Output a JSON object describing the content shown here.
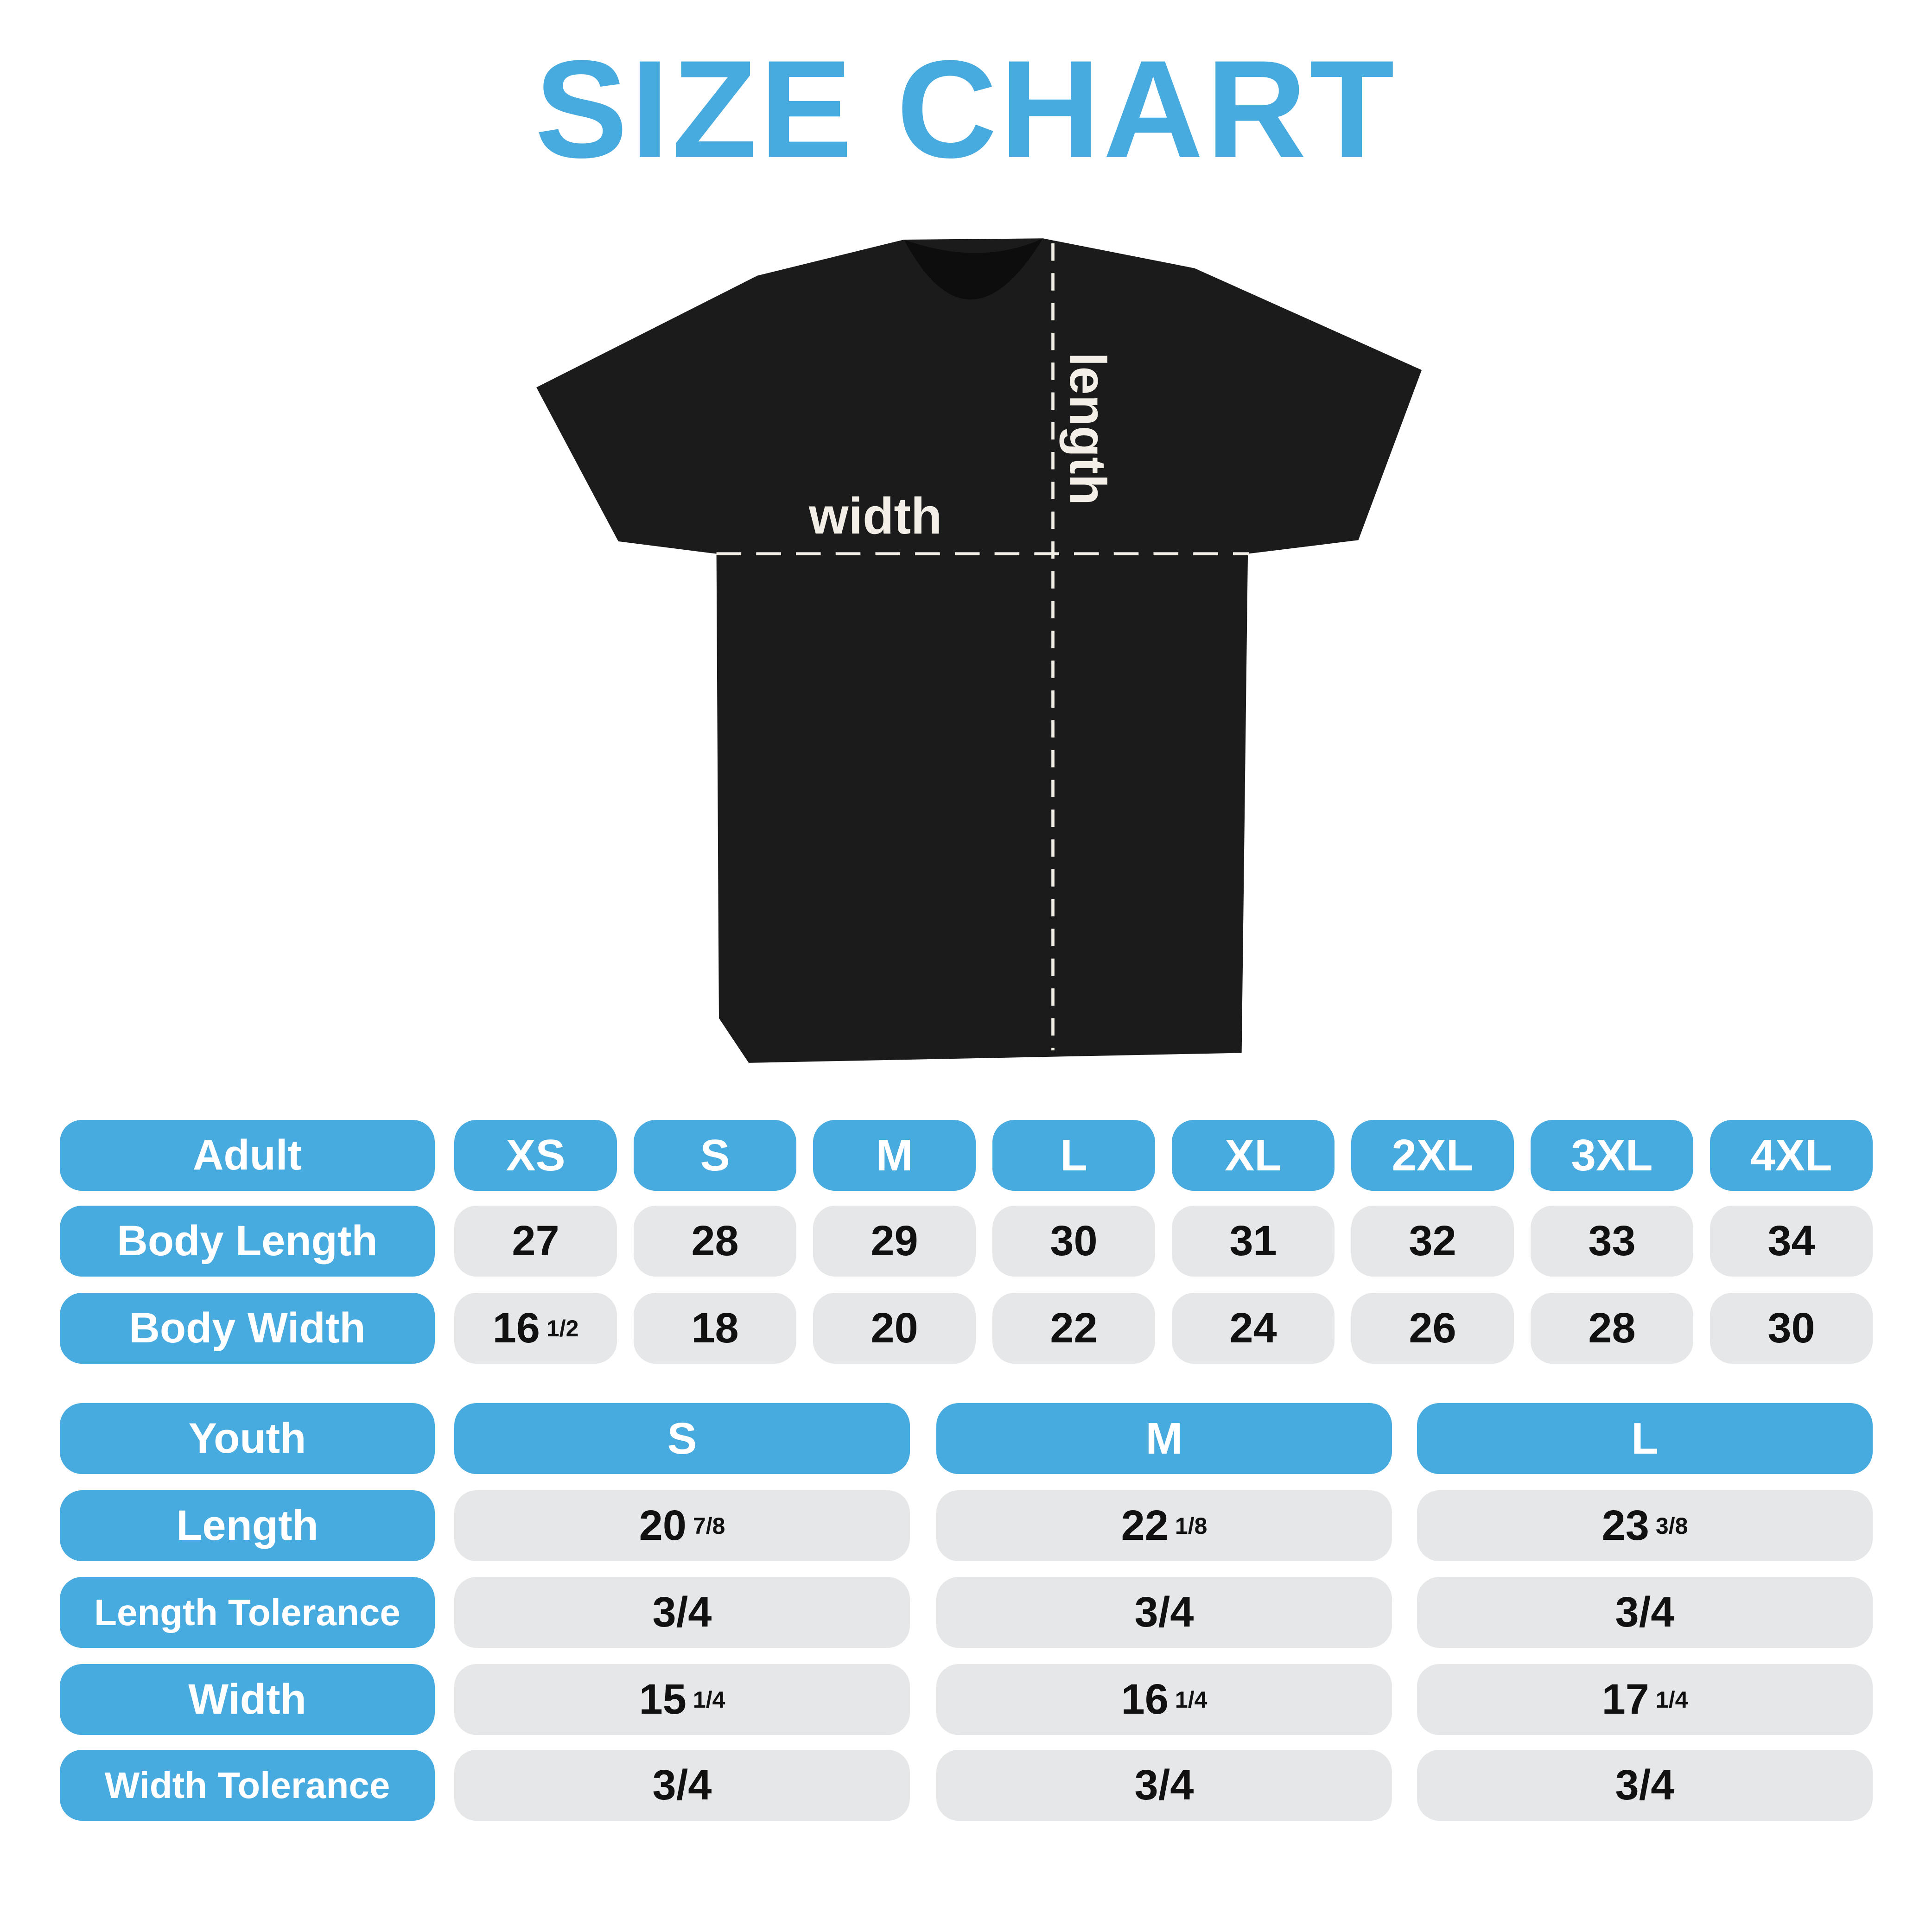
{
  "title": "SIZE CHART",
  "colors": {
    "accent": "#48ABE0",
    "cell": "#E6E7E8",
    "shirt": "#1b1b1b"
  },
  "shirt": {
    "width_label": "width",
    "length_label": "length"
  },
  "adult": {
    "header": "Adult",
    "sizes": [
      "XS",
      "S",
      "M",
      "L",
      "XL",
      "2XL",
      "3XL",
      "4XL"
    ],
    "rows": [
      {
        "label": "Body Length",
        "values": [
          {
            "whole": "27"
          },
          {
            "whole": "28"
          },
          {
            "whole": "29"
          },
          {
            "whole": "30"
          },
          {
            "whole": "31"
          },
          {
            "whole": "32"
          },
          {
            "whole": "33"
          },
          {
            "whole": "34"
          }
        ]
      },
      {
        "label": "Body Width",
        "values": [
          {
            "whole": "16",
            "frac": "1/2"
          },
          {
            "whole": "18"
          },
          {
            "whole": "20"
          },
          {
            "whole": "22"
          },
          {
            "whole": "24"
          },
          {
            "whole": "26"
          },
          {
            "whole": "28"
          },
          {
            "whole": "30"
          }
        ]
      }
    ]
  },
  "youth": {
    "header": "Youth",
    "sizes": [
      "S",
      "M",
      "L"
    ],
    "rows": [
      {
        "label": "Length",
        "values": [
          {
            "whole": "20",
            "frac": "7/8"
          },
          {
            "whole": "22",
            "frac": "1/8"
          },
          {
            "whole": "23",
            "frac": "3/8"
          }
        ]
      },
      {
        "label": "Length Tolerance",
        "values": [
          {
            "whole": "3/4"
          },
          {
            "whole": "3/4"
          },
          {
            "whole": "3/4"
          }
        ]
      },
      {
        "label": "Width",
        "values": [
          {
            "whole": "15",
            "frac": "1/4"
          },
          {
            "whole": "16",
            "frac": "1/4"
          },
          {
            "whole": "17",
            "frac": "1/4"
          }
        ]
      },
      {
        "label": "Width Tolerance",
        "values": [
          {
            "whole": "3/4"
          },
          {
            "whole": "3/4"
          },
          {
            "whole": "3/4"
          }
        ]
      }
    ]
  }
}
